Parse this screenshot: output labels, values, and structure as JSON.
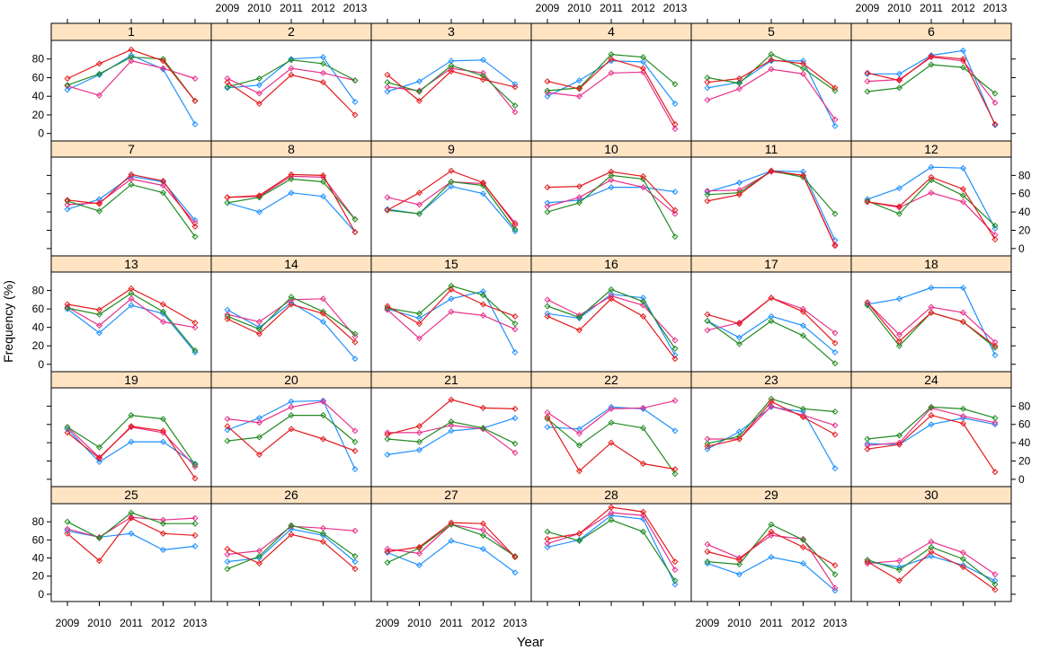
{
  "chart_data": {
    "type": "line",
    "layout": "lattice 6 columns x 5 rows",
    "xlabel": "Year",
    "ylabel": "Frequency (%)",
    "x": [
      2009,
      2010,
      2011,
      2012,
      2013
    ],
    "ylim": [
      -8,
      100
    ],
    "yticks": [
      0,
      20,
      40,
      60,
      80
    ],
    "series_colors": [
      "#1E90FF",
      "#E8308A",
      "#228B22",
      "#E41A1C"
    ],
    "panels": [
      {
        "label": "1",
        "series": [
          [
            47,
            63,
            84,
            69,
            10
          ],
          [
            51,
            41,
            78,
            70,
            59
          ],
          [
            52,
            64,
            82,
            80,
            35
          ],
          [
            59,
            75,
            90,
            78,
            35
          ]
        ]
      },
      {
        "label": "2",
        "series": [
          [
            49,
            52,
            80,
            82,
            34
          ],
          [
            59,
            43,
            70,
            65,
            57
          ],
          [
            50,
            59,
            79,
            75,
            57
          ],
          [
            55,
            32,
            63,
            55,
            20
          ]
        ]
      },
      {
        "label": "3",
        "series": [
          [
            45,
            56,
            78,
            79,
            53
          ],
          [
            50,
            46,
            70,
            65,
            23
          ],
          [
            55,
            45,
            73,
            62,
            30
          ],
          [
            63,
            35,
            67,
            58,
            50
          ]
        ]
      },
      {
        "label": "4",
        "series": [
          [
            40,
            57,
            78,
            77,
            32
          ],
          [
            44,
            40,
            65,
            66,
            5
          ],
          [
            46,
            49,
            85,
            82,
            53
          ],
          [
            56,
            48,
            80,
            70,
            10
          ]
        ]
      },
      {
        "label": "5",
        "series": [
          [
            49,
            55,
            78,
            78,
            8
          ],
          [
            36,
            48,
            69,
            64,
            15
          ],
          [
            60,
            54,
            85,
            70,
            46
          ],
          [
            55,
            59,
            79,
            75,
            49
          ]
        ]
      },
      {
        "label": "6",
        "series": [
          [
            64,
            64,
            84,
            89,
            9
          ],
          [
            56,
            58,
            82,
            78,
            33
          ],
          [
            45,
            49,
            74,
            71,
            43
          ],
          [
            65,
            57,
            83,
            80,
            10
          ]
        ]
      },
      {
        "label": "7",
        "series": [
          [
            43,
            54,
            79,
            73,
            31
          ],
          [
            48,
            50,
            76,
            69,
            28
          ],
          [
            52,
            41,
            70,
            61,
            13
          ],
          [
            53,
            49,
            81,
            74,
            24
          ]
        ]
      },
      {
        "label": "8",
        "series": [
          [
            50,
            40,
            61,
            57,
            18
          ],
          [
            56,
            57,
            79,
            78,
            32
          ],
          [
            50,
            56,
            76,
            73,
            32
          ],
          [
            56,
            58,
            81,
            80,
            18
          ]
        ]
      },
      {
        "label": "9",
        "series": [
          [
            43,
            38,
            68,
            60,
            19
          ],
          [
            56,
            48,
            73,
            71,
            28
          ],
          [
            42,
            38,
            73,
            69,
            21
          ],
          [
            42,
            61,
            85,
            72,
            26
          ]
        ]
      },
      {
        "label": "10",
        "series": [
          [
            50,
            53,
            67,
            67,
            62
          ],
          [
            46,
            56,
            75,
            67,
            38
          ],
          [
            40,
            50,
            80,
            76,
            13
          ],
          [
            67,
            68,
            84,
            79,
            42
          ]
        ]
      },
      {
        "label": "11",
        "series": [
          [
            62,
            72,
            85,
            84,
            9
          ],
          [
            63,
            64,
            84,
            80,
            4
          ],
          [
            59,
            61,
            85,
            78,
            38
          ],
          [
            52,
            59,
            85,
            80,
            3
          ]
        ]
      },
      {
        "label": "12",
        "series": [
          [
            54,
            66,
            89,
            88,
            22
          ],
          [
            51,
            45,
            61,
            51,
            15
          ],
          [
            52,
            38,
            75,
            58,
            25
          ],
          [
            51,
            46,
            78,
            65,
            10
          ]
        ]
      },
      {
        "label": "13",
        "series": [
          [
            60,
            34,
            64,
            55,
            13
          ],
          [
            62,
            42,
            71,
            46,
            40
          ],
          [
            61,
            54,
            77,
            57,
            15
          ],
          [
            65,
            59,
            82,
            65,
            45
          ]
        ]
      },
      {
        "label": "14",
        "series": [
          [
            59,
            40,
            67,
            46,
            6
          ],
          [
            54,
            46,
            70,
            71,
            30
          ],
          [
            52,
            38,
            73,
            57,
            33
          ],
          [
            49,
            33,
            65,
            55,
            24
          ]
        ]
      },
      {
        "label": "15",
        "series": [
          [
            60,
            50,
            71,
            79,
            13
          ],
          [
            59,
            28,
            57,
            53,
            38
          ],
          [
            61,
            55,
            85,
            75,
            44
          ],
          [
            63,
            44,
            81,
            65,
            52
          ]
        ]
      },
      {
        "label": "16",
        "series": [
          [
            55,
            50,
            76,
            72,
            10
          ],
          [
            70,
            53,
            74,
            64,
            26
          ],
          [
            63,
            51,
            81,
            68,
            17
          ],
          [
            52,
            37,
            71,
            52,
            6
          ]
        ]
      },
      {
        "label": "17",
        "series": [
          [
            47,
            29,
            52,
            42,
            13
          ],
          [
            37,
            45,
            72,
            60,
            34
          ],
          [
            47,
            22,
            47,
            31,
            1
          ],
          [
            54,
            44,
            72,
            57,
            23
          ]
        ]
      },
      {
        "label": "18",
        "series": [
          [
            65,
            71,
            83,
            83,
            10
          ],
          [
            67,
            32,
            62,
            56,
            24
          ],
          [
            64,
            20,
            56,
            46,
            18
          ],
          [
            67,
            25,
            56,
            46,
            20
          ]
        ]
      },
      {
        "label": "19",
        "series": [
          [
            55,
            19,
            41,
            41,
            17
          ],
          [
            57,
            24,
            57,
            51,
            14
          ],
          [
            57,
            35,
            70,
            66,
            16
          ],
          [
            51,
            23,
            58,
            53,
            1
          ]
        ]
      },
      {
        "label": "20",
        "series": [
          [
            54,
            67,
            85,
            86,
            11
          ],
          [
            66,
            62,
            79,
            85,
            53
          ],
          [
            42,
            46,
            70,
            70,
            41
          ],
          [
            58,
            27,
            55,
            44,
            31
          ]
        ]
      },
      {
        "label": "21",
        "series": [
          [
            27,
            32,
            53,
            56,
            67
          ],
          [
            51,
            51,
            59,
            55,
            29
          ],
          [
            44,
            41,
            63,
            56,
            39
          ],
          [
            49,
            58,
            87,
            78,
            77
          ]
        ]
      },
      {
        "label": "22",
        "series": [
          [
            57,
            55,
            79,
            77,
            53
          ],
          [
            73,
            50,
            77,
            78,
            86
          ],
          [
            66,
            37,
            62,
            56,
            6
          ],
          [
            68,
            9,
            40,
            17,
            11
          ]
        ]
      },
      {
        "label": "23",
        "series": [
          [
            33,
            52,
            79,
            74,
            12
          ],
          [
            44,
            44,
            80,
            70,
            59
          ],
          [
            39,
            47,
            88,
            77,
            74
          ],
          [
            36,
            44,
            85,
            68,
            49
          ]
        ]
      },
      {
        "label": "24",
        "series": [
          [
            39,
            38,
            60,
            67,
            60
          ],
          [
            37,
            40,
            78,
            69,
            62
          ],
          [
            44,
            48,
            79,
            77,
            67
          ],
          [
            33,
            38,
            70,
            61,
            8
          ]
        ]
      },
      {
        "label": "25",
        "series": [
          [
            70,
            63,
            67,
            49,
            53
          ],
          [
            72,
            63,
            85,
            82,
            84
          ],
          [
            80,
            62,
            90,
            78,
            78
          ],
          [
            67,
            37,
            84,
            67,
            65
          ]
        ]
      },
      {
        "label": "26",
        "series": [
          [
            36,
            40,
            72,
            65,
            36
          ],
          [
            44,
            48,
            75,
            73,
            70
          ],
          [
            28,
            42,
            76,
            67,
            42
          ],
          [
            50,
            34,
            66,
            58,
            28
          ]
        ]
      },
      {
        "label": "27",
        "series": [
          [
            46,
            32,
            59,
            50,
            24
          ],
          [
            50,
            45,
            77,
            71,
            41
          ],
          [
            35,
            51,
            77,
            65,
            42
          ],
          [
            47,
            52,
            79,
            78,
            41
          ]
        ]
      },
      {
        "label": "28",
        "series": [
          [
            52,
            60,
            87,
            83,
            11
          ],
          [
            56,
            67,
            90,
            87,
            27
          ],
          [
            69,
            59,
            82,
            69,
            15
          ],
          [
            61,
            67,
            96,
            91,
            36
          ]
        ]
      },
      {
        "label": "29",
        "series": [
          [
            34,
            22,
            41,
            34,
            4
          ],
          [
            55,
            40,
            65,
            61,
            7
          ],
          [
            36,
            33,
            77,
            60,
            22
          ],
          [
            47,
            38,
            69,
            52,
            32
          ]
        ]
      },
      {
        "label": "30",
        "series": [
          [
            36,
            30,
            42,
            32,
            15
          ],
          [
            34,
            37,
            58,
            46,
            22
          ],
          [
            38,
            27,
            52,
            39,
            11
          ],
          [
            36,
            15,
            47,
            30,
            5
          ]
        ]
      }
    ]
  }
}
